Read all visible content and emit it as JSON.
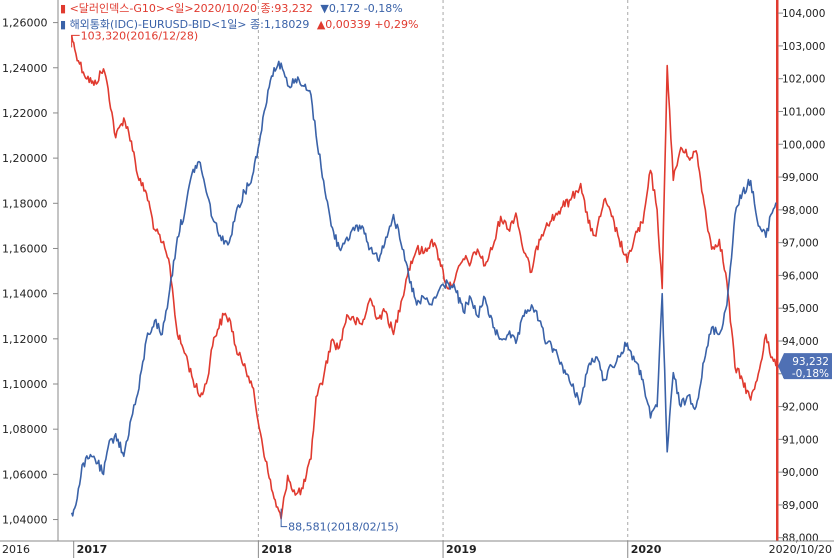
{
  "chart_data": {
    "type": "line",
    "title": "",
    "xlabel": "",
    "ylabel": "",
    "x_range": [
      "2016/12/01",
      "2020/10/20"
    ],
    "x_ticks": [
      {
        "label": "2016",
        "date": "2016/12/01",
        "bold": false,
        "grid": false
      },
      {
        "label": "2017",
        "date": "2017/01/01",
        "bold": true,
        "grid": false
      },
      {
        "label": "2018",
        "date": "2018/01/01",
        "bold": true,
        "grid": true
      },
      {
        "label": "2019",
        "date": "2019/01/01",
        "bold": true,
        "grid": true
      },
      {
        "label": "2020",
        "date": "2020/01/01",
        "bold": true,
        "grid": true
      },
      {
        "label": "2020/10/20",
        "date": "2020/10/20",
        "bold": false,
        "grid": false
      }
    ],
    "left_axis": {
      "ylim": [
        1.0305,
        1.27
      ],
      "ticks": [
        {
          "value": 1.26,
          "label": "1,26000"
        },
        {
          "value": 1.24,
          "label": "1,24000"
        },
        {
          "value": 1.22,
          "label": "1,22000"
        },
        {
          "value": 1.2,
          "label": "1,20000"
        },
        {
          "value": 1.18,
          "label": "1,18000"
        },
        {
          "value": 1.16,
          "label": "1,16000"
        },
        {
          "value": 1.14,
          "label": "1,14000"
        },
        {
          "value": 1.12,
          "label": "1,12000"
        },
        {
          "value": 1.1,
          "label": "1,10000"
        },
        {
          "value": 1.08,
          "label": "1,08000"
        },
        {
          "value": 1.06,
          "label": "1,06000"
        },
        {
          "value": 1.04,
          "label": "1,04000"
        }
      ]
    },
    "right_axis": {
      "ylim": [
        87.9,
        104.4
      ],
      "ticks": [
        {
          "value": 104,
          "label": "104,000"
        },
        {
          "value": 103,
          "label": "103,000"
        },
        {
          "value": 102,
          "label": "102,000"
        },
        {
          "value": 101,
          "label": "101,000"
        },
        {
          "value": 100,
          "label": "100,000"
        },
        {
          "value": 99,
          "label": "99,000"
        },
        {
          "value": 98,
          "label": "98,000"
        },
        {
          "value": 97,
          "label": "97,000"
        },
        {
          "value": 96,
          "label": "96,000"
        },
        {
          "value": 95,
          "label": "95,000"
        },
        {
          "value": 94,
          "label": "94,000"
        },
        {
          "value": 93,
          "label": "93,000"
        },
        {
          "value": 92,
          "label": "92,000"
        },
        {
          "value": 91,
          "label": "91,000"
        },
        {
          "value": 90,
          "label": "90,000"
        },
        {
          "value": 89,
          "label": "89,000"
        },
        {
          "value": 88,
          "label": "88,000"
        }
      ]
    },
    "legend": [
      {
        "marker": "▮",
        "text": "<달러인덱스-G10><일>2020/10/20 종:93,232",
        "change": "▼0,172 -0,18%",
        "color": "#e03a2f",
        "change_color": "#3a62a8"
      },
      {
        "marker": "▮",
        "text": "해외통화(IDC)-EURUSD-BID<1일> 종:1,18029",
        "change": "▲0,00339 +0,29%",
        "color": "#3a62a8",
        "change_color": "#e03a2f"
      }
    ],
    "series": [
      {
        "name": "달러인덱스-G10",
        "axis": "right",
        "color": "#e03a2f",
        "dates": [
          "2016/12/28",
          "2017/01/03",
          "2017/01/20",
          "2017/02/10",
          "2017/03/01",
          "2017/03/10",
          "2017/03/25",
          "2017/04/10",
          "2017/04/25",
          "2017/05/10",
          "2017/05/25",
          "2017/06/10",
          "2017/06/25",
          "2017/07/10",
          "2017/07/25",
          "2017/08/10",
          "2017/08/25",
          "2017/09/08",
          "2017/09/20",
          "2017/10/05",
          "2017/10/25",
          "2017/11/07",
          "2017/11/20",
          "2017/12/05",
          "2017/12/20",
          "2018/01/05",
          "2018/01/20",
          "2018/02/01",
          "2018/02/15",
          "2018/02/28",
          "2018/03/15",
          "2018/03/30",
          "2018/04/15",
          "2018/04/25",
          "2018/05/10",
          "2018/05/25",
          "2018/06/10",
          "2018/06/25",
          "2018/07/10",
          "2018/07/25",
          "2018/08/10",
          "2018/08/25",
          "2018/09/10",
          "2018/09/25",
          "2018/10/10",
          "2018/10/25",
          "2018/11/10",
          "2018/11/25",
          "2018/12/10",
          "2018/12/25",
          "2019/01/10",
          "2019/01/25",
          "2019/02/10",
          "2019/02/25",
          "2019/03/10",
          "2019/03/25",
          "2019/04/10",
          "2019/04/25",
          "2019/05/10",
          "2019/05/25",
          "2019/06/10",
          "2019/06/25",
          "2019/07/10",
          "2019/07/25",
          "2019/08/10",
          "2019/08/25",
          "2019/09/10",
          "2019/09/30",
          "2019/10/15",
          "2019/10/30",
          "2019/11/15",
          "2019/11/30",
          "2019/12/15",
          "2019/12/31",
          "2020/01/15",
          "2020/01/31",
          "2020/02/15",
          "2020/02/28",
          "2020/03/09",
          "2020/03/19",
          "2020/03/31",
          "2020/04/15",
          "2020/04/30",
          "2020/05/15",
          "2020/05/31",
          "2020/06/15",
          "2020/06/30",
          "2020/07/15",
          "2020/07/31",
          "2020/08/15",
          "2020/08/31",
          "2020/09/15",
          "2020/09/30",
          "2020/10/10",
          "2020/10/20"
        ],
        "values": [
          103.32,
          102.9,
          102.2,
          101.8,
          102.3,
          101.7,
          100.2,
          100.8,
          100.1,
          98.9,
          98.5,
          97.4,
          97.0,
          96.3,
          94.2,
          93.6,
          92.8,
          92.3,
          92.7,
          94.1,
          94.8,
          94.6,
          93.6,
          93.3,
          92.6,
          91.2,
          90.0,
          89.2,
          88.58,
          89.9,
          89.3,
          89.5,
          90.4,
          92.3,
          92.9,
          94.0,
          93.8,
          94.8,
          94.6,
          94.5,
          95.3,
          94.7,
          94.9,
          94.2,
          95.2,
          96.2,
          96.8,
          96.7,
          97.1,
          96.5,
          95.6,
          95.9,
          96.5,
          96.4,
          96.8,
          96.3,
          96.9,
          97.8,
          97.4,
          97.9,
          96.7,
          96.1,
          97.1,
          97.6,
          97.8,
          98.1,
          98.3,
          98.8,
          97.6,
          97.2,
          98.3,
          97.8,
          97.1,
          96.4,
          97.2,
          97.6,
          99.2,
          98.0,
          95.6,
          102.4,
          98.9,
          99.9,
          99.6,
          99.8,
          98.2,
          96.8,
          97.1,
          95.8,
          93.2,
          92.8,
          92.2,
          93.0,
          94.2,
          93.5,
          93.232
        ]
      },
      {
        "name": "EURUSD",
        "axis": "left",
        "color": "#3a62a8",
        "dates": [
          "2016/12/28",
          "2017/01/03",
          "2017/01/20",
          "2017/02/10",
          "2017/03/01",
          "2017/03/10",
          "2017/03/25",
          "2017/04/10",
          "2017/04/25",
          "2017/05/10",
          "2017/05/25",
          "2017/06/10",
          "2017/06/25",
          "2017/07/10",
          "2017/07/25",
          "2017/08/10",
          "2017/08/25",
          "2017/09/08",
          "2017/09/20",
          "2017/10/05",
          "2017/10/25",
          "2017/11/07",
          "2017/11/20",
          "2017/12/05",
          "2017/12/20",
          "2018/01/05",
          "2018/01/20",
          "2018/02/01",
          "2018/02/15",
          "2018/02/28",
          "2018/03/15",
          "2018/03/30",
          "2018/04/15",
          "2018/04/25",
          "2018/05/10",
          "2018/05/25",
          "2018/06/10",
          "2018/06/25",
          "2018/07/10",
          "2018/07/25",
          "2018/08/10",
          "2018/08/25",
          "2018/09/10",
          "2018/09/25",
          "2018/10/10",
          "2018/10/25",
          "2018/11/10",
          "2018/11/25",
          "2018/12/10",
          "2018/12/25",
          "2019/01/10",
          "2019/01/25",
          "2019/02/10",
          "2019/02/25",
          "2019/03/10",
          "2019/03/25",
          "2019/04/10",
          "2019/04/25",
          "2019/05/10",
          "2019/05/25",
          "2019/06/10",
          "2019/06/25",
          "2019/07/10",
          "2019/07/25",
          "2019/08/10",
          "2019/08/25",
          "2019/09/10",
          "2019/09/30",
          "2019/10/15",
          "2019/10/30",
          "2019/11/15",
          "2019/11/30",
          "2019/12/15",
          "2019/12/31",
          "2020/01/15",
          "2020/01/31",
          "2020/02/15",
          "2020/02/28",
          "2020/03/09",
          "2020/03/19",
          "2020/03/31",
          "2020/04/15",
          "2020/04/30",
          "2020/05/15",
          "2020/05/31",
          "2020/06/15",
          "2020/06/30",
          "2020/07/15",
          "2020/07/31",
          "2020/08/15",
          "2020/08/31",
          "2020/09/15",
          "2020/09/30",
          "2020/10/10",
          "2020/10/20"
        ],
        "values": [
          1.043,
          1.045,
          1.065,
          1.068,
          1.06,
          1.072,
          1.078,
          1.068,
          1.085,
          1.098,
          1.12,
          1.128,
          1.122,
          1.142,
          1.165,
          1.178,
          1.195,
          1.198,
          1.185,
          1.172,
          1.162,
          1.165,
          1.178,
          1.185,
          1.192,
          1.21,
          1.23,
          1.24,
          1.242,
          1.232,
          1.235,
          1.232,
          1.228,
          1.21,
          1.19,
          1.17,
          1.16,
          1.165,
          1.168,
          1.17,
          1.16,
          1.155,
          1.165,
          1.175,
          1.162,
          1.148,
          1.135,
          1.138,
          1.135,
          1.142,
          1.145,
          1.142,
          1.132,
          1.138,
          1.13,
          1.138,
          1.125,
          1.12,
          1.122,
          1.118,
          1.13,
          1.135,
          1.128,
          1.118,
          1.115,
          1.108,
          1.1,
          1.092,
          1.108,
          1.112,
          1.102,
          1.108,
          1.112,
          1.118,
          1.11,
          1.102,
          1.085,
          1.09,
          1.14,
          1.07,
          1.105,
          1.09,
          1.095,
          1.09,
          1.11,
          1.125,
          1.122,
          1.135,
          1.175,
          1.185,
          1.19,
          1.17,
          1.165,
          1.175,
          1.18029
        ]
      }
    ],
    "annotations": [
      {
        "text": "103,320(2016/12/28)",
        "series": "달러인덱스-G10",
        "date": "2016/12/28",
        "value": 103.32,
        "kind": "high",
        "color": "#e03a2f"
      },
      {
        "text": "88,581(2018/02/15)",
        "series": "달러인덱스-G10",
        "date": "2018/02/15",
        "value": 88.581,
        "kind": "low",
        "color": "#3a62a8"
      }
    ],
    "last_value_label": {
      "value": 93.232,
      "lines": [
        "93,232",
        "-0,18%"
      ],
      "bg": "#4f70b4"
    }
  }
}
